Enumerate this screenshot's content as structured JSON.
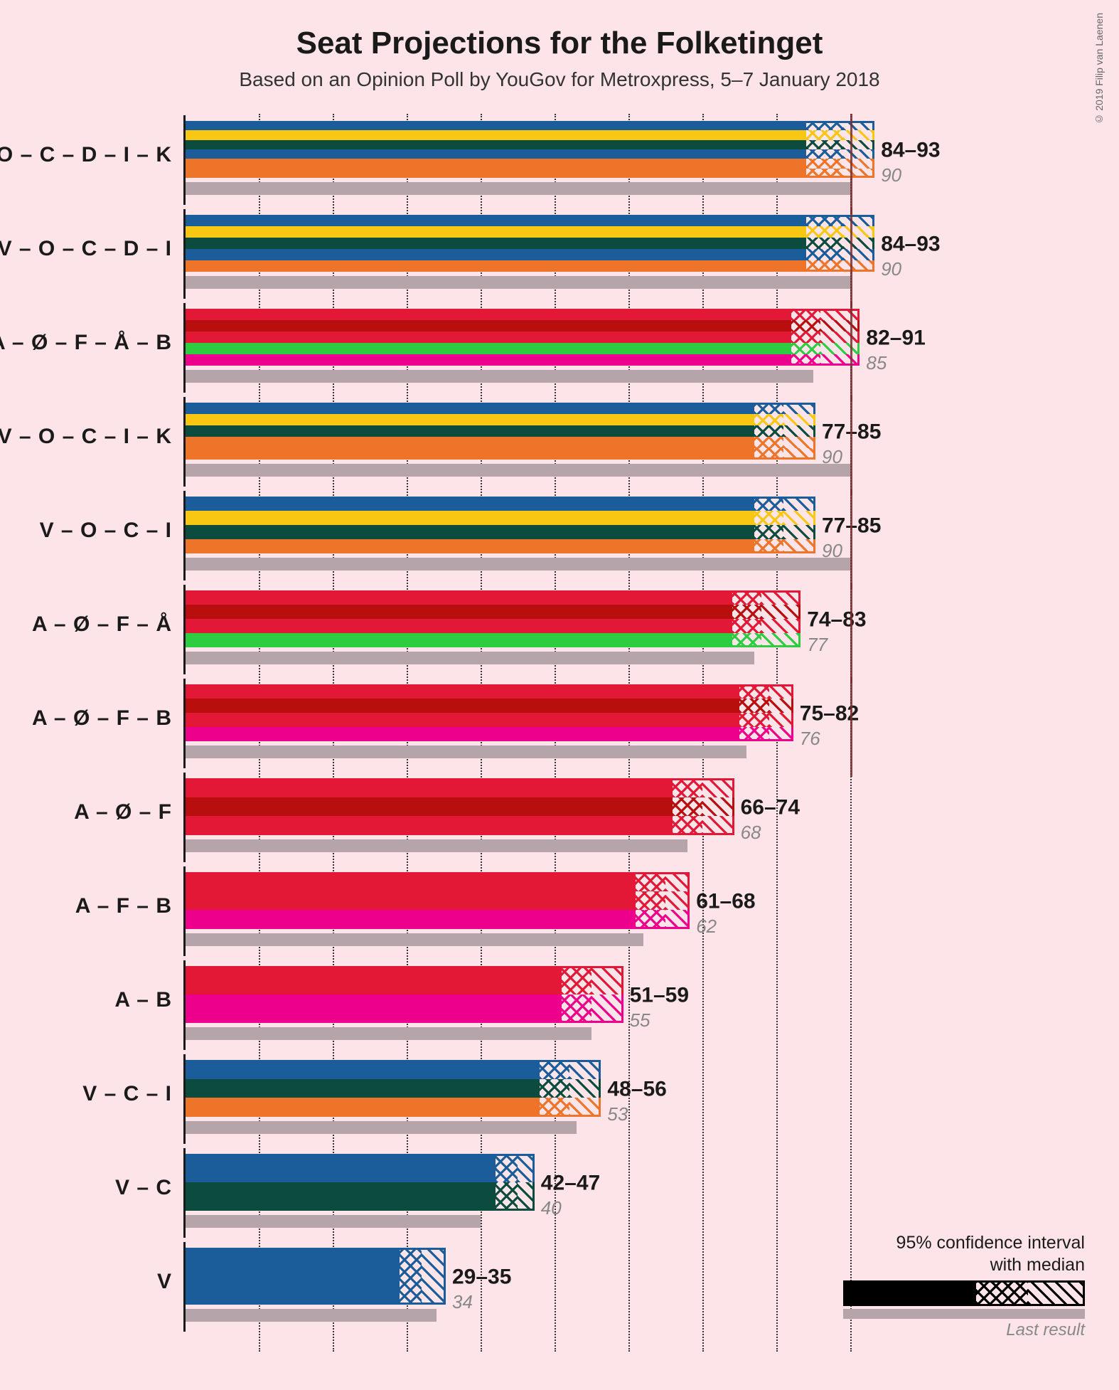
{
  "title": "Seat Projections for the Folketinget",
  "subtitle": "Based on an Opinion Poll by YouGov for Metroxpress, 5–7 January 2018",
  "copyright": "© 2019 Filip van Laenen",
  "legend": {
    "line1": "95% confidence interval",
    "line2": "with median",
    "last": "Last result"
  },
  "chart": {
    "type": "horizontal-bar-ci",
    "xmax": 100,
    "majority": 90,
    "grid_step": 10,
    "background": "#fce4e8",
    "grid_color": "#333333",
    "shadow_color": "#b5a4a9",
    "party_colors": {
      "V": "#1b5d9b",
      "O": "#f8c714",
      "C": "#0b4c3e",
      "D": "#1b5d9b",
      "I": "#ee7429",
      "K": "#ee7429",
      "A": "#e31836",
      "Ø": "#b90e0e",
      "F": "#e31836",
      "Å": "#2ecc40",
      "B": "#ec008c"
    },
    "coalitions": [
      {
        "label": "V – O – C – D – I – K",
        "parties": [
          "V",
          "O",
          "C",
          "D",
          "I",
          "K"
        ],
        "low": 84,
        "median": 89,
        "high": 93,
        "last": 90
      },
      {
        "label": "V – O – C – D – I",
        "parties": [
          "V",
          "O",
          "C",
          "D",
          "I"
        ],
        "low": 84,
        "median": 89,
        "high": 93,
        "last": 90
      },
      {
        "label": "A – Ø – F – Å – B",
        "parties": [
          "A",
          "Ø",
          "F",
          "Å",
          "B"
        ],
        "low": 82,
        "median": 86,
        "high": 91,
        "last": 85
      },
      {
        "label": "V – O – C – I – K",
        "parties": [
          "V",
          "O",
          "C",
          "I",
          "K"
        ],
        "low": 77,
        "median": 81,
        "high": 85,
        "last": 90
      },
      {
        "label": "V – O – C – I",
        "parties": [
          "V",
          "O",
          "C",
          "I"
        ],
        "low": 77,
        "median": 81,
        "high": 85,
        "last": 90
      },
      {
        "label": "A – Ø – F – Å",
        "parties": [
          "A",
          "Ø",
          "F",
          "Å"
        ],
        "low": 74,
        "median": 78,
        "high": 83,
        "last": 77
      },
      {
        "label": "A – Ø – F – B",
        "parties": [
          "A",
          "Ø",
          "F",
          "B"
        ],
        "low": 75,
        "median": 79,
        "high": 82,
        "last": 76
      },
      {
        "label": "A – Ø – F",
        "parties": [
          "A",
          "Ø",
          "F"
        ],
        "low": 66,
        "median": 70,
        "high": 74,
        "last": 68
      },
      {
        "label": "A – F – B",
        "parties": [
          "A",
          "F",
          "B"
        ],
        "low": 61,
        "median": 65,
        "high": 68,
        "last": 62
      },
      {
        "label": "A – B",
        "parties": [
          "A",
          "B"
        ],
        "low": 51,
        "median": 55,
        "high": 59,
        "last": 55
      },
      {
        "label": "V – C – I",
        "parties": [
          "V",
          "C",
          "I"
        ],
        "low": 48,
        "median": 52,
        "high": 56,
        "last": 53
      },
      {
        "label": "V – C",
        "parties": [
          "V",
          "C"
        ],
        "low": 42,
        "median": 45,
        "high": 47,
        "last": 40
      },
      {
        "label": "V",
        "parties": [
          "V"
        ],
        "low": 29,
        "median": 32,
        "high": 35,
        "last": 34
      }
    ]
  }
}
